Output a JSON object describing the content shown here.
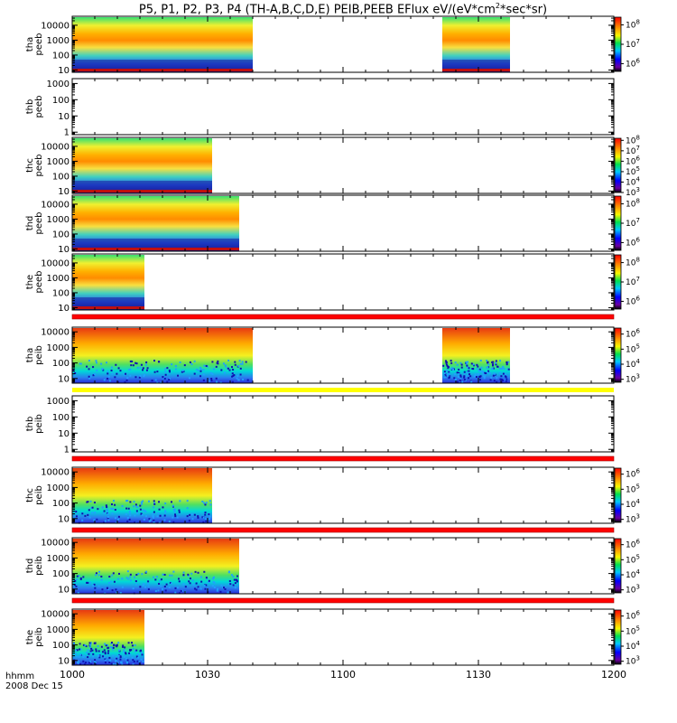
{
  "title": {
    "main": "P5, P1, P2, P3, P4 (TH-A,B,C,D,E) PEIB,PEEB EFlux eV/(eV*cm",
    "sup": "2",
    "tail": "*sec*sr)"
  },
  "footer": {
    "axis_label": "hhmm",
    "date": "2008 Dec 15"
  },
  "x_axis": {
    "tick_labels": [
      "1000",
      "1030",
      "1100",
      "1130",
      "1200"
    ],
    "range_minutes": [
      0,
      120
    ]
  },
  "colors": {
    "background": "#ffffff",
    "axis": "#000000",
    "flag_red": "#ff0000",
    "flag_yellow": "#ffff00"
  },
  "chart_data": [
    {
      "type": "heatmap",
      "panel": "thapeeb",
      "ylabel_line1": "tha",
      "ylabel_line2": "peeb",
      "y_scale": "log",
      "y_ticks": [
        "10",
        "100",
        "1000",
        "10000"
      ],
      "ylim": [
        7,
        40000
      ],
      "data_intervals_min": [
        [
          0,
          40
        ],
        [
          82,
          97
        ]
      ],
      "colorbar": {
        "scale": "log",
        "ticks": [
          "10",
          "10",
          "10"
        ],
        "tick_exponents": [
          "8",
          "7",
          "6"
        ],
        "range_log10": [
          5.6,
          8.4
        ]
      },
      "flag_bar": null
    },
    {
      "type": "heatmap",
      "panel": "thbpeeb",
      "ylabel_line1": "thb",
      "ylabel_line2": "peeb",
      "y_scale": "log",
      "y_ticks": [
        "1",
        "10",
        "100",
        "1000"
      ],
      "ylim": [
        0.7,
        2000
      ],
      "data_intervals_min": [],
      "colorbar": null,
      "flag_bar": null
    },
    {
      "type": "heatmap",
      "panel": "thcpeeb",
      "ylabel_line1": "thc",
      "ylabel_line2": "peeb",
      "y_scale": "log",
      "y_ticks": [
        "10",
        "100",
        "1000",
        "10000"
      ],
      "ylim": [
        7,
        40000
      ],
      "data_intervals_min": [
        [
          0,
          31
        ]
      ],
      "colorbar": {
        "scale": "log",
        "ticks": [
          "10",
          "10",
          "10",
          "10",
          "10",
          "10"
        ],
        "tick_exponents": [
          "8",
          "7",
          "6",
          "5",
          "4",
          "3"
        ],
        "range_log10": [
          3,
          8.2
        ]
      },
      "flag_bar": null
    },
    {
      "type": "heatmap",
      "panel": "thdpeeb",
      "ylabel_line1": "thd",
      "ylabel_line2": "peeb",
      "y_scale": "log",
      "y_ticks": [
        "10",
        "100",
        "1000",
        "10000"
      ],
      "ylim": [
        7,
        40000
      ],
      "data_intervals_min": [
        [
          0,
          37
        ]
      ],
      "colorbar": {
        "scale": "log",
        "ticks": [
          "10",
          "10",
          "10"
        ],
        "tick_exponents": [
          "8",
          "7",
          "6"
        ],
        "range_log10": [
          5.6,
          8.4
        ]
      },
      "flag_bar": null
    },
    {
      "type": "heatmap",
      "panel": "thepeeb",
      "ylabel_line1": "the",
      "ylabel_line2": "peeb",
      "y_scale": "log",
      "y_ticks": [
        "10",
        "100",
        "1000",
        "10000"
      ],
      "ylim": [
        7,
        40000
      ],
      "data_intervals_min": [
        [
          0,
          16
        ]
      ],
      "colorbar": {
        "scale": "log",
        "ticks": [
          "10",
          "10",
          "10"
        ],
        "tick_exponents": [
          "8",
          "7",
          "6"
        ],
        "range_log10": [
          5.6,
          8.4
        ]
      },
      "flag_bar": "red"
    },
    {
      "type": "heatmap",
      "panel": "thapeib",
      "ylabel_line1": "tha",
      "ylabel_line2": "peib",
      "y_scale": "log",
      "y_ticks": [
        "10",
        "100",
        "1000",
        "10000"
      ],
      "ylim": [
        5,
        20000
      ],
      "data_intervals_min": [
        [
          0,
          40
        ],
        [
          82,
          97
        ]
      ],
      "colorbar": {
        "scale": "log",
        "ticks": [
          "10",
          "10",
          "10",
          "10"
        ],
        "tick_exponents": [
          "6",
          "5",
          "4",
          "3"
        ],
        "range_log10": [
          2.8,
          6.4
        ]
      },
      "flag_bar": "yellow"
    },
    {
      "type": "heatmap",
      "panel": "thbpeib",
      "ylabel_line1": "thb",
      "ylabel_line2": "peib",
      "y_scale": "log",
      "y_ticks": [
        "1",
        "10",
        "100",
        "1000"
      ],
      "ylim": [
        0.7,
        2000
      ],
      "data_intervals_min": [],
      "colorbar": null,
      "flag_bar": "red"
    },
    {
      "type": "heatmap",
      "panel": "thcpeib",
      "ylabel_line1": "thc",
      "ylabel_line2": "peib",
      "y_scale": "log",
      "y_ticks": [
        "10",
        "100",
        "1000",
        "10000"
      ],
      "ylim": [
        5,
        20000
      ],
      "data_intervals_min": [
        [
          0,
          31
        ]
      ],
      "colorbar": {
        "scale": "log",
        "ticks": [
          "10",
          "10",
          "10",
          "10"
        ],
        "tick_exponents": [
          "6",
          "5",
          "4",
          "3"
        ],
        "range_log10": [
          2.8,
          6.4
        ]
      },
      "flag_bar": "red"
    },
    {
      "type": "heatmap",
      "panel": "thdpeib",
      "ylabel_line1": "thd",
      "ylabel_line2": "peib",
      "y_scale": "log",
      "y_ticks": [
        "10",
        "100",
        "1000",
        "10000"
      ],
      "ylim": [
        5,
        20000
      ],
      "data_intervals_min": [
        [
          0,
          37
        ]
      ],
      "colorbar": {
        "scale": "log",
        "ticks": [
          "10",
          "10",
          "10",
          "10"
        ],
        "tick_exponents": [
          "6",
          "5",
          "4",
          "3"
        ],
        "range_log10": [
          2.8,
          6.4
        ]
      },
      "flag_bar": "red"
    },
    {
      "type": "heatmap",
      "panel": "thepeib",
      "ylabel_line1": "the",
      "ylabel_line2": "peib",
      "y_scale": "log",
      "y_ticks": [
        "10",
        "100",
        "1000",
        "10000"
      ],
      "ylim": [
        5,
        20000
      ],
      "data_intervals_min": [
        [
          0,
          16
        ]
      ],
      "colorbar": {
        "scale": "log",
        "ticks": [
          "10",
          "10",
          "10",
          "10"
        ],
        "tick_exponents": [
          "6",
          "5",
          "4",
          "3"
        ],
        "range_log10": [
          2.8,
          6.4
        ]
      },
      "flag_bar": null
    }
  ]
}
